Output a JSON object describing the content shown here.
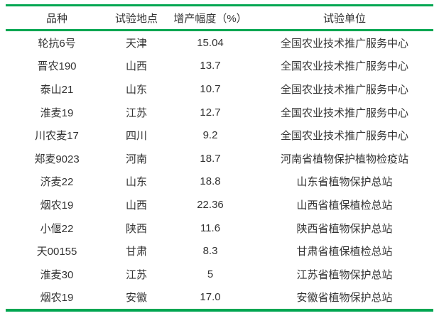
{
  "table": {
    "title_semantic": "wheat-variety-trial-results",
    "headers": [
      "品种",
      "试验地点",
      "增产幅度（%）",
      "试验单位"
    ],
    "rows": [
      [
        "轮抗6号",
        "天津",
        "15.04",
        "全国农业技术推广服务中心"
      ],
      [
        "晋农190",
        "山西",
        "13.7",
        "全国农业技术推广服务中心"
      ],
      [
        "泰山21",
        "山东",
        "10.7",
        "全国农业技术推广服务中心"
      ],
      [
        "淮麦19",
        "江苏",
        "12.7",
        "全国农业技术推广服务中心"
      ],
      [
        "川农麦17",
        "四川",
        "9.2",
        "全国农业技术推广服务中心"
      ],
      [
        "郑麦9023",
        "河南",
        "18.7",
        "河南省植物保护植物检疫站"
      ],
      [
        "济麦22",
        "山东",
        "18.8",
        "山东省植物保护总站"
      ],
      [
        "烟农19",
        "山西",
        "22.36",
        "山西省植保植检总站"
      ],
      [
        "小偃22",
        "陕西",
        "11.6",
        "陕西省植物保护总站"
      ],
      [
        "天00155",
        "甘肃",
        "8.3",
        "甘肃省植保植检总站"
      ],
      [
        "淮麦30",
        "江苏",
        "5",
        "江苏省植物保护总站"
      ],
      [
        "烟农19",
        "安徽",
        "17.0",
        "安徽省植物保护总站"
      ]
    ],
    "colors": {
      "rule_green": "#00A651",
      "text": "#333333",
      "background": "#ffffff"
    }
  }
}
